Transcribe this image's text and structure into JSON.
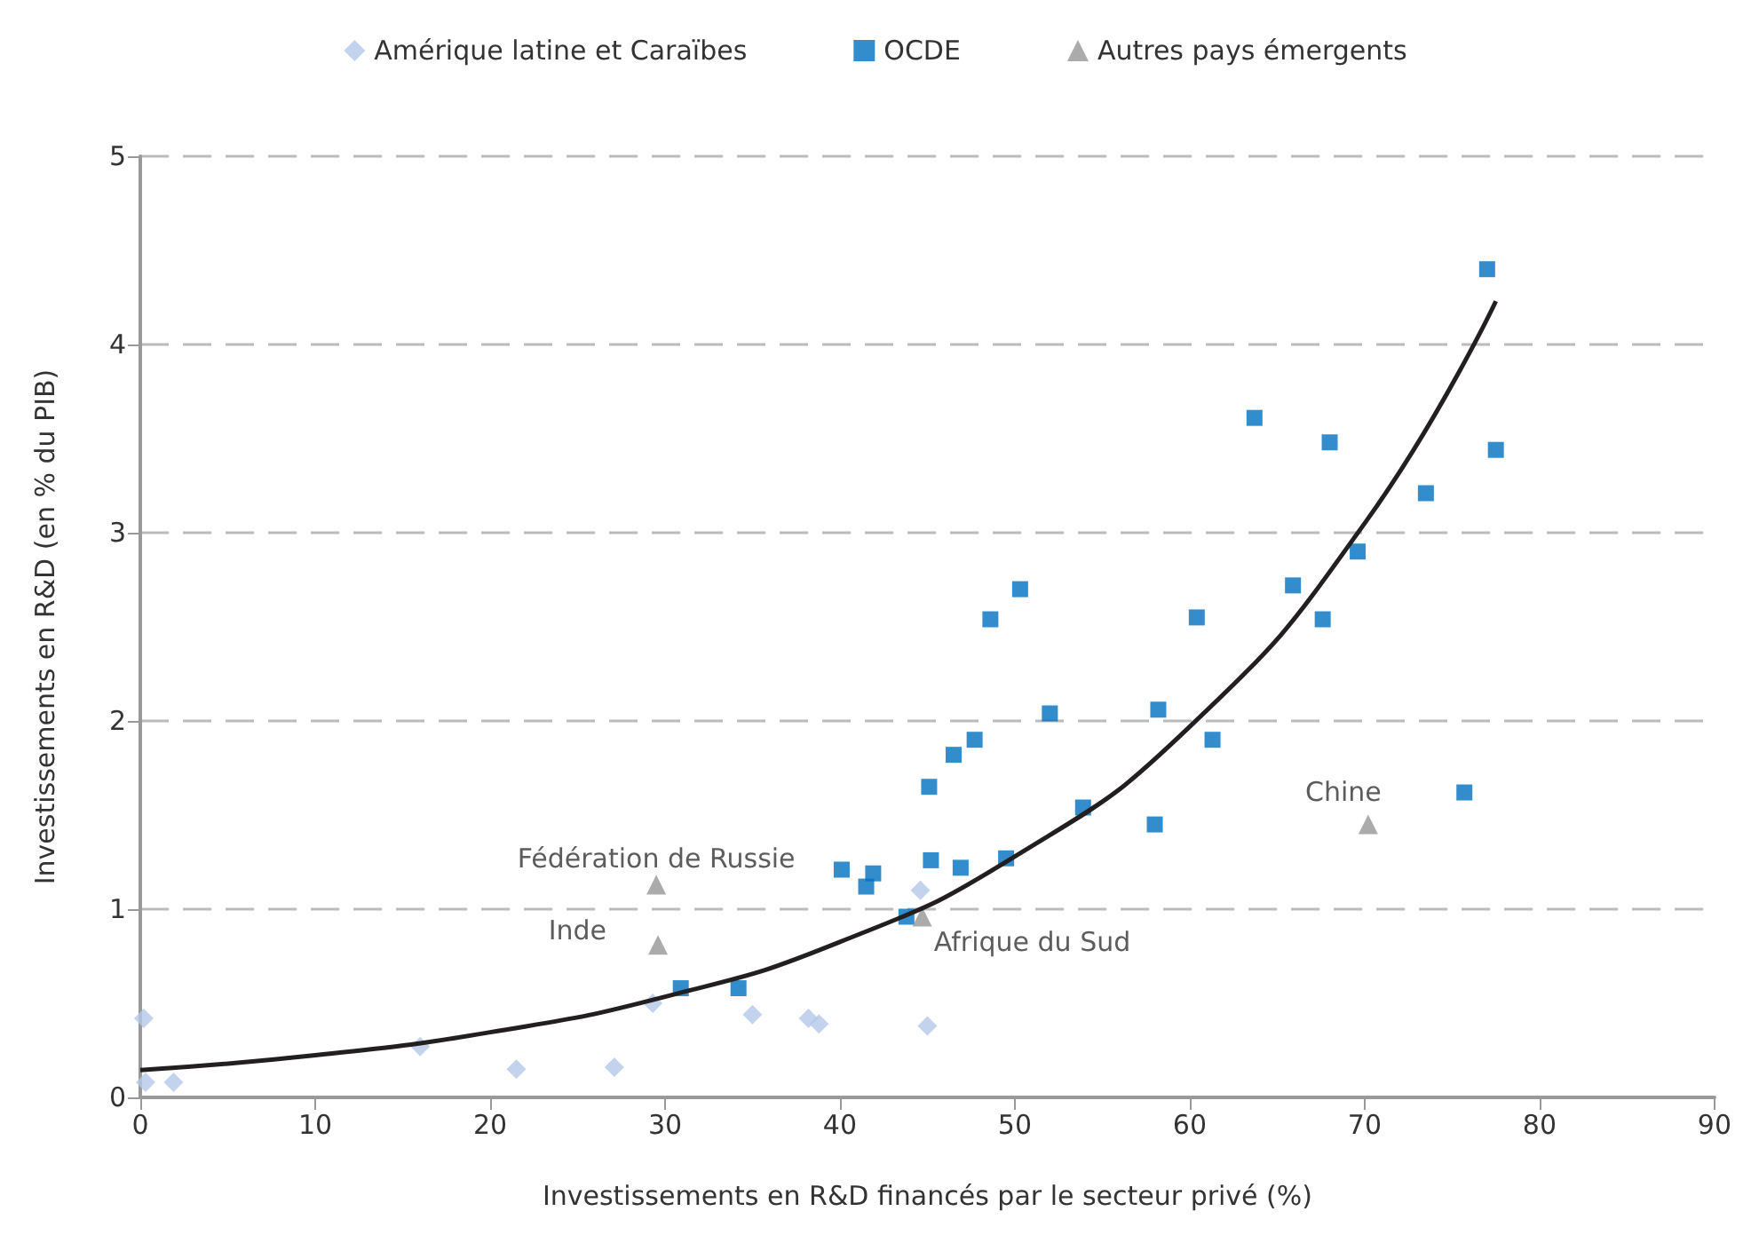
{
  "chart_data": {
    "type": "scatter",
    "xlabel": "Investissements en R&D financés par le secteur privé (%)",
    "ylabel": "Investissements en R&D (en % du PIB)",
    "xlim": [
      0,
      90
    ],
    "xticks": [
      0,
      10,
      20,
      30,
      40,
      50,
      60,
      70,
      80,
      90
    ],
    "ylim": [
      0,
      5
    ],
    "yticks": [
      0,
      1,
      2,
      3,
      4,
      5
    ],
    "grid": "y",
    "legend": "top",
    "series": [
      {
        "name": "Amérique latine et Caraïbes",
        "color": "#b4c8ea",
        "marker": "diamond",
        "x": [
          0.2,
          0.3,
          1.9,
          16.0,
          21.5,
          27.1,
          29.3,
          35.0,
          38.2,
          38.8,
          44.6,
          45.0
        ],
        "values": [
          0.42,
          0.08,
          0.08,
          0.27,
          0.15,
          0.16,
          0.5,
          0.44,
          0.42,
          0.39,
          1.1,
          0.38
        ]
      },
      {
        "name": "OCDE",
        "color": "#0070c0",
        "marker": "square",
        "x": [
          30.9,
          34.2,
          40.1,
          41.5,
          41.9,
          43.8,
          45.1,
          45.2,
          46.5,
          46.9,
          47.7,
          48.6,
          49.5,
          50.3,
          52.0,
          53.9,
          58.0,
          58.2,
          60.4,
          61.3,
          63.7,
          65.9,
          67.6,
          68.0,
          69.6,
          73.5,
          75.7,
          77.0,
          77.5
        ],
        "values": [
          0.58,
          0.58,
          1.21,
          1.12,
          1.19,
          0.96,
          1.65,
          1.26,
          1.82,
          1.22,
          1.9,
          2.54,
          1.27,
          2.7,
          2.04,
          1.54,
          1.45,
          2.06,
          2.55,
          1.9,
          3.61,
          2.72,
          2.54,
          3.48,
          2.9,
          3.21,
          1.62,
          4.4,
          3.44
        ]
      },
      {
        "name": "Autres pays émergents",
        "color": "#969696",
        "marker": "triangle",
        "x": [
          29.5,
          29.6,
          44.7,
          70.2
        ],
        "values": [
          1.13,
          0.81,
          0.96,
          1.45
        ]
      },
      {
        "type": "line",
        "color": "#231f20",
        "marker": "none",
        "x": [
          0,
          10,
          20,
          30,
          40,
          50,
          60,
          70,
          77.5
        ],
        "values": [
          0.145,
          0.224,
          0.346,
          0.535,
          0.826,
          1.28,
          1.97,
          3.05,
          4.23
        ]
      }
    ],
    "annotations": [
      {
        "text": "Fédération de Russie",
        "x": 29.5,
        "y": 1.13
      },
      {
        "text": "Inde",
        "x": 29.6,
        "y": 0.81
      },
      {
        "text": "Afrique du Sud",
        "x": 44.7,
        "y": 0.96
      },
      {
        "text": "Chine",
        "x": 70.2,
        "y": 1.45
      }
    ]
  }
}
